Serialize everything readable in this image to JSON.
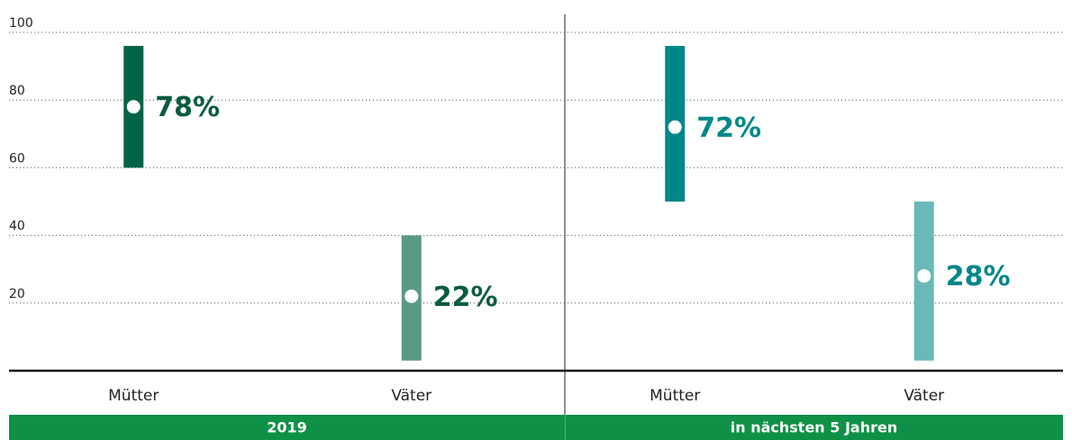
{
  "chart_data": {
    "type": "range",
    "ylim": [
      0,
      100
    ],
    "yticks": [
      20,
      40,
      60,
      80,
      100
    ],
    "grid": true,
    "panels": [
      {
        "name": "2019",
        "categories": [
          "Mütter",
          "Väter"
        ],
        "values": [
          78,
          22
        ],
        "value_labels": [
          "78%",
          "22%"
        ],
        "low": [
          60,
          3
        ],
        "high": [
          96,
          40
        ],
        "colors": [
          "#006446",
          "#5a9a82"
        ],
        "label_color": "#0a5c40"
      },
      {
        "name": "in nächsten 5 Jahren",
        "categories": [
          "Mütter",
          "Väter"
        ],
        "values": [
          72,
          28
        ],
        "value_labels": [
          "72%",
          "28%"
        ],
        "low": [
          50,
          3
        ],
        "high": [
          96,
          50
        ],
        "colors": [
          "#00878a",
          "#6ab8ba"
        ],
        "label_color": "#00878a"
      }
    ]
  }
}
